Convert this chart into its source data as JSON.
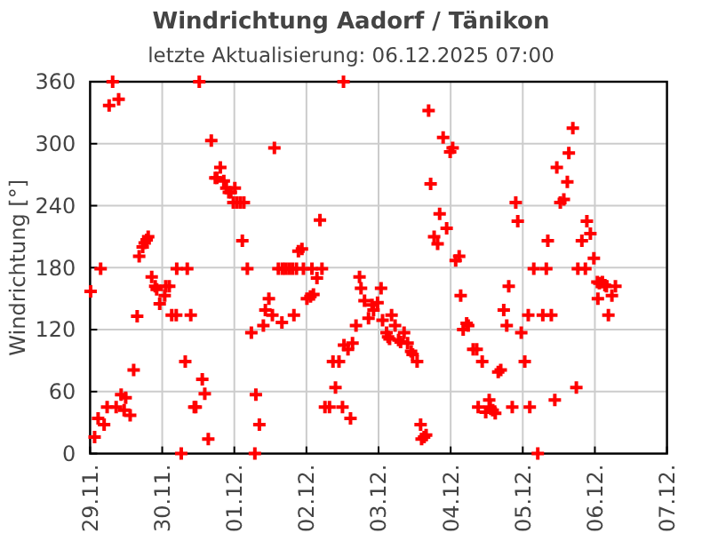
{
  "chart_data": {
    "type": "scatter",
    "title": "Windrichtung Aadorf / Tänikon",
    "subtitle": "letzte Aktualisierung: 06.12.2025 07:00",
    "ylabel": "Windrichtung [°]",
    "xlim": [
      "2025-11-29",
      "2025-12-07"
    ],
    "xticks": [
      {
        "value": "2025-11-29",
        "label": "29.11."
      },
      {
        "value": "2025-11-30",
        "label": "30.11."
      },
      {
        "value": "2025-12-01",
        "label": "01.12."
      },
      {
        "value": "2025-12-02",
        "label": "02.12."
      },
      {
        "value": "2025-12-03",
        "label": "03.12."
      },
      {
        "value": "2025-12-04",
        "label": "04.12."
      },
      {
        "value": "2025-12-05",
        "label": "05.12."
      },
      {
        "value": "2025-12-06",
        "label": "06.12."
      },
      {
        "value": "2025-12-07",
        "label": "07.12."
      }
    ],
    "ylim": [
      0,
      360
    ],
    "yticks": [
      0,
      60,
      120,
      180,
      240,
      300,
      360
    ],
    "grid": true,
    "marker": "cross",
    "series": [
      {
        "color": "#ff0000",
        "x": [
          "2025-11-29T00:10",
          "2025-11-29T01:30",
          "2025-11-29T02:40",
          "2025-11-29T03:30",
          "2025-11-29T04:40",
          "2025-11-29T05:40",
          "2025-11-29T06:20",
          "2025-11-29T07:30",
          "2025-11-29T08:40",
          "2025-11-29T09:30",
          "2025-11-29T10:20",
          "2025-11-29T11:20",
          "2025-11-29T11:50",
          "2025-11-29T13:20",
          "2025-11-29T14:30",
          "2025-11-29T15:40",
          "2025-11-29T16:20",
          "2025-11-29T17:30",
          "2025-11-29T18:10",
          "2025-11-29T18:50",
          "2025-11-29T19:20",
          "2025-11-29T20:30",
          "2025-11-29T21:40",
          "2025-11-29T22:10",
          "2025-11-29T23:10",
          "2025-11-30T00:50",
          "2025-11-30T01:10",
          "2025-11-30T02:20",
          "2025-11-30T03:10",
          "2025-11-30T04:40",
          "2025-11-30T04:50",
          "2025-11-30T06:20",
          "2025-11-30T07:40",
          "2025-11-30T08:20",
          "2025-11-30T09:30",
          "2025-11-30T10:40",
          "2025-11-30T11:10",
          "2025-11-30T12:20",
          "2025-11-30T13:20",
          "2025-11-30T14:10",
          "2025-11-30T15:20",
          "2025-11-30T16:20",
          "2025-11-30T17:40",
          "2025-11-30T18:10",
          "2025-11-30T19:20",
          "2025-11-30T20:30",
          "2025-11-30T21:20",
          "2025-11-30T22:10",
          "2025-11-30T22:50",
          "2025-11-30T23:40",
          "2025-12-01T00:10",
          "2025-12-01T00:50",
          "2025-12-01T02:00",
          "2025-12-01T02:40",
          "2025-12-01T03:10",
          "2025-12-01T04:20",
          "2025-12-01T05:40",
          "2025-12-01T06:50",
          "2025-12-01T07:10",
          "2025-12-01T08:20",
          "2025-12-01T09:40",
          "2025-12-01T10:20",
          "2025-12-01T11:30",
          "2025-12-01T12:40",
          "2025-12-01T13:20",
          "2025-12-01T14:40",
          "2025-12-01T15:50",
          "2025-12-01T16:00",
          "2025-12-01T17:00",
          "2025-12-01T18:10",
          "2025-12-01T19:20",
          "2025-12-01T19:50",
          "2025-12-01T20:40",
          "2025-12-01T21:20",
          "2025-12-01T22:30",
          "2025-12-01T23:00",
          "2025-12-02T00:10",
          "2025-12-02T01:20",
          "2025-12-02T01:50",
          "2025-12-02T02:20",
          "2025-12-02T03:30",
          "2025-12-02T04:30",
          "2025-12-02T05:10",
          "2025-12-02T06:10",
          "2025-12-02T07:40",
          "2025-12-02T08:50",
          "2025-12-02T09:40",
          "2025-12-02T10:50",
          "2025-12-02T12:00",
          "2025-12-02T12:20",
          "2025-12-02T12:30",
          "2025-12-02T13:50",
          "2025-12-02T14:40",
          "2025-12-02T15:20",
          "2025-12-02T16:30",
          "2025-12-02T17:40",
          "2025-12-02T18:10",
          "2025-12-02T19:20",
          "2025-12-02T20:40",
          "2025-12-02T21:50",
          "2025-12-02T22:20",
          "2025-12-02T23:40",
          "2025-12-03T00:50",
          "2025-12-03T01:20",
          "2025-12-03T02:40",
          "2025-12-03T03:10",
          "2025-12-03T03:40",
          "2025-12-03T04:20",
          "2025-12-03T05:30",
          "2025-12-03T06:40",
          "2025-12-03T07:20",
          "2025-12-03T08:30",
          "2025-12-03T09:40",
          "2025-12-03T10:50",
          "2025-12-03T11:20",
          "2025-12-03T12:50",
          "2025-12-03T14:00",
          "2025-12-03T14:20",
          "2025-12-03T15:10",
          "2025-12-03T15:50",
          "2025-12-03T16:40",
          "2025-12-03T17:20",
          "2025-12-03T18:30",
          "2025-12-03T19:40",
          "2025-12-03T20:20",
          "2025-12-03T21:30",
          "2025-12-03T22:40",
          "2025-12-03T23:50",
          "2025-12-04T00:40",
          "2025-12-04T01:40",
          "2025-12-04T02:50",
          "2025-12-04T03:20",
          "2025-12-04T04:10",
          "2025-12-04T05:20",
          "2025-12-04T05:50",
          "2025-12-04T07:30",
          "2025-12-04T08:40",
          "2025-12-04T09:10",
          "2025-12-04T10:30",
          "2025-12-04T11:40",
          "2025-12-04T12:50",
          "2025-12-04T13:10",
          "2025-12-04T14:00",
          "2025-12-04T14:50",
          "2025-12-04T15:50",
          "2025-12-04T16:40",
          "2025-12-04T17:40",
          "2025-12-04T18:40",
          "2025-12-04T19:20",
          "2025-12-04T20:30",
          "2025-12-04T21:40",
          "2025-12-04T22:20",
          "2025-12-04T23:30",
          "2025-12-05T00:40",
          "2025-12-05T01:50",
          "2025-12-05T02:20",
          "2025-12-05T03:40",
          "2025-12-05T05:00",
          "2025-12-05T06:40",
          "2025-12-05T07:50",
          "2025-12-05T08:20",
          "2025-12-05T09:30",
          "2025-12-05T10:40",
          "2025-12-05T11:20",
          "2025-12-05T12:30",
          "2025-12-05T13:40",
          "2025-12-05T14:50",
          "2025-12-05T15:20",
          "2025-12-05T16:40",
          "2025-12-05T17:50",
          "2025-12-05T18:20",
          "2025-12-05T19:40",
          "2025-12-05T20:50",
          "2025-12-05T21:20",
          "2025-12-05T22:30",
          "2025-12-05T23:40",
          "2025-12-06T00:50",
          "2025-12-06T01:00",
          "2025-12-06T01:30",
          "2025-12-06T02:30",
          "2025-12-06T03:20",
          "2025-12-06T03:50",
          "2025-12-06T04:30",
          "2025-12-06T05:40",
          "2025-12-06T06:50"
        ],
        "values": [
          157,
          16,
          34,
          179,
          28,
          45,
          337,
          360,
          45,
          343,
          57,
          42,
          54,
          37,
          81,
          133,
          191,
          200,
          204,
          207,
          210,
          171,
          162,
          159,
          145,
          153,
          162,
          162,
          134,
          134,
          179,
          0,
          89,
          179,
          134,
          45,
          45,
          360,
          72,
          58,
          14,
          303,
          267,
          267,
          277,
          264,
          257,
          253,
          253,
          243,
          257,
          243,
          243,
          206,
          243,
          179,
          117,
          0,
          57,
          28,
          124,
          139,
          150,
          134,
          296,
          179,
          127,
          179,
          179,
          179,
          179,
          134,
          179,
          196,
          198,
          179,
          150,
          152,
          179,
          154,
          170,
          226,
          179,
          45,
          45,
          89,
          64,
          89,
          45,
          360,
          105,
          101,
          34,
          107,
          124,
          171,
          160,
          148,
          131,
          144,
          139,
          146,
          160,
          129,
          117,
          113,
          111,
          134,
          124,
          110,
          108,
          117,
          107,
          99,
          96,
          89,
          28,
          14,
          16,
          18,
          332,
          261,
          210,
          203,
          232,
          306,
          218,
          292,
          296,
          187,
          191,
          153,
          120,
          126,
          124,
          101,
          101,
          45,
          89,
          40,
          52,
          45,
          42,
          39,
          79,
          81,
          139,
          124,
          162,
          45,
          243,
          225,
          117,
          89,
          134,
          45,
          179,
          0,
          134,
          179,
          206,
          134,
          52,
          277,
          243,
          246,
          263,
          291,
          315,
          64,
          179,
          206,
          179,
          225,
          213,
          189,
          166,
          150,
          165,
          166,
          163,
          162,
          134,
          153,
          162
        ]
      }
    ]
  }
}
